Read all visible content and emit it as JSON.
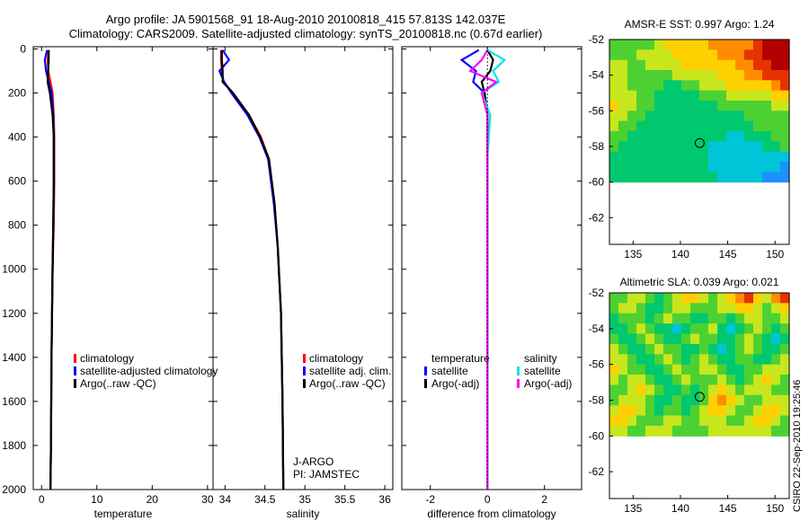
{
  "header": {
    "line1": "Argo profile: JA 5901568_91 18-Aug-2010 20100818_415 57.813S 142.037E",
    "line2": "Climatology: CARS2009. Satellite-adjusted climatology: synTS_20100818.nc (0.67d earlier)"
  },
  "credit": "CSIRO 22-Sep-2010 19:25:46",
  "colors": {
    "climatology": "#ff0000",
    "satellite": "#0000ff",
    "argo": "#000000",
    "satellite_sal": "#00e5ee",
    "argo_sal": "#ff00ff"
  },
  "chart_data": [
    {
      "type": "line",
      "name": "temperature-profile",
      "xlabel": "temperature",
      "xlim": [
        -1.5,
        31
      ],
      "ylim": [
        2000,
        -10
      ],
      "xticks": [
        0,
        10,
        20,
        30
      ],
      "yticks": [
        0,
        200,
        400,
        600,
        800,
        1000,
        1200,
        1400,
        1600,
        1800,
        2000
      ],
      "legend": {
        "position": "middle-right",
        "entries": [
          "climatology",
          "satellite-adjusted climatology",
          "Argo(..raw -QC)"
        ]
      },
      "series": [
        {
          "name": "climatology",
          "color": "#ff0000",
          "x": [
            1.3,
            1.1,
            1.2,
            1.6,
            2.0,
            2.2,
            2.3,
            2.3,
            2.2,
            2.0,
            1.8,
            1.7,
            1.6
          ],
          "y": [
            5,
            50,
            100,
            150,
            200,
            300,
            400,
            600,
            800,
            1000,
            1400,
            1800,
            2000
          ]
        },
        {
          "name": "satellite-adjusted climatology",
          "color": "#0000ff",
          "x": [
            1.0,
            0.6,
            0.8,
            1.3,
            1.8,
            2.1,
            2.2,
            2.2,
            2.1,
            2.0,
            1.8,
            1.7,
            1.6
          ],
          "y": [
            5,
            50,
            100,
            150,
            200,
            300,
            400,
            600,
            800,
            1000,
            1400,
            1800,
            2000
          ]
        },
        {
          "name": "Argo(..raw -QC)",
          "color": "#000000",
          "x": [
            1.3,
            1.3,
            1.2,
            1.1,
            1.5,
            2.0,
            2.2,
            2.2,
            2.1,
            2.0,
            1.8,
            1.7,
            1.6
          ],
          "y": [
            5,
            50,
            100,
            150,
            200,
            300,
            400,
            600,
            800,
            1000,
            1400,
            1800,
            2000
          ]
        }
      ]
    },
    {
      "type": "line",
      "name": "salinity-profile",
      "xlabel": "salinity",
      "xlim": [
        33.85,
        36.1
      ],
      "ylim": [
        2000,
        -10
      ],
      "xticks": [
        34,
        34.5,
        35,
        35.5,
        36
      ],
      "legend": {
        "position": "middle-right",
        "entries": [
          "climatology",
          "satellite adj. clim.",
          "Argo(..raw -QC)"
        ]
      },
      "annotations": [
        "J-ARGO",
        "PI: JAMSTEC"
      ],
      "series": [
        {
          "name": "climatology",
          "color": "#ff0000",
          "x": [
            33.95,
            33.95,
            33.96,
            33.98,
            34.1,
            34.3,
            34.45,
            34.55,
            34.62,
            34.66,
            34.7,
            34.72,
            34.73
          ],
          "y": [
            5,
            50,
            100,
            150,
            200,
            300,
            400,
            500,
            700,
            900,
            1200,
            1600,
            2000
          ]
        },
        {
          "name": "satellite adj. clim.",
          "color": "#0000ff",
          "x": [
            33.97,
            34.05,
            33.93,
            33.99,
            34.08,
            34.28,
            34.43,
            34.54,
            34.61,
            34.66,
            34.7,
            34.72,
            34.73
          ],
          "y": [
            5,
            50,
            100,
            150,
            200,
            300,
            400,
            500,
            700,
            900,
            1200,
            1600,
            2000
          ]
        },
        {
          "name": "Argo(..raw -QC)",
          "color": "#000000",
          "x": [
            33.96,
            33.96,
            33.97,
            33.97,
            34.1,
            34.3,
            34.44,
            34.55,
            34.62,
            34.66,
            34.7,
            34.72,
            34.73
          ],
          "y": [
            5,
            50,
            100,
            150,
            200,
            300,
            400,
            500,
            700,
            900,
            1200,
            1600,
            2000
          ]
        }
      ]
    },
    {
      "type": "line",
      "name": "difference-profile",
      "xlabel": "difference from climatology",
      "xlim": [
        -3,
        3.3
      ],
      "ylim": [
        2000,
        -10
      ],
      "xticks": [
        -2,
        0,
        2
      ],
      "legend": {
        "position": "middle",
        "groups": [
          {
            "title": "temperature",
            "entries": [
              "satellite",
              "Argo(-adj)"
            ]
          },
          {
            "title": "salinity",
            "entries": [
              "satellite",
              "Argo(-adj)"
            ]
          }
        ]
      },
      "series": [
        {
          "name": "temperature satellite",
          "color": "#0000ff",
          "x": [
            -0.3,
            -0.9,
            -0.4,
            -0.5,
            -0.1,
            0.0,
            0.0,
            0.0,
            0.0
          ],
          "y": [
            5,
            50,
            100,
            150,
            200,
            300,
            500,
            1000,
            2000
          ]
        },
        {
          "name": "temperature Argo(-adj)",
          "color": "#000000",
          "x": [
            0.0,
            0.2,
            0.1,
            -0.2,
            -0.1,
            0.0,
            0.0,
            0.0,
            0.0
          ],
          "y": [
            5,
            50,
            100,
            150,
            200,
            300,
            500,
            1000,
            2000
          ]
        },
        {
          "name": "salinity satellite",
          "color": "#00e5ee",
          "x": [
            0.0,
            0.6,
            0.2,
            0.4,
            -0.2,
            0.1,
            0.0,
            0.0,
            0.0
          ],
          "y": [
            5,
            50,
            100,
            150,
            200,
            300,
            500,
            1000,
            2000
          ]
        },
        {
          "name": "salinity Argo(-adj)",
          "color": "#ff00ff",
          "x": [
            0.0,
            -0.2,
            -0.6,
            0.3,
            -0.2,
            0.0,
            0.0,
            0.0,
            0.0
          ],
          "y": [
            5,
            50,
            100,
            150,
            200,
            300,
            500,
            1000,
            2000
          ]
        }
      ]
    },
    {
      "type": "heatmap",
      "name": "amsr-sst-map",
      "title": "AMSR-E SST: 0.997 Argo: 1.24",
      "xlim": [
        132.5,
        151.5
      ],
      "ylim": [
        -63.5,
        -52
      ],
      "xticks": [
        135,
        140,
        145,
        150
      ],
      "yticks": [
        -52,
        -54,
        -56,
        -58,
        -60,
        -62
      ],
      "data_extent": {
        "lon": [
          132.5,
          151.5
        ],
        "lat": [
          -60,
          -52
        ]
      },
      "marker": {
        "lon": 142.037,
        "lat": -57.813
      },
      "colors": [
        "#1e90ff",
        "#00c4d8",
        "#00c86e",
        "#4dd132",
        "#c8e61e",
        "#ffd000",
        "#ff8c00",
        "#e63200",
        "#b00000"
      ],
      "values": [
        [
          3,
          3,
          3,
          3,
          3,
          4,
          5,
          5,
          5,
          5,
          5,
          6,
          6,
          6,
          6,
          6,
          7,
          8,
          8,
          8
        ],
        [
          3,
          3,
          3,
          4,
          4,
          4,
          4,
          5,
          5,
          5,
          5,
          5,
          6,
          6,
          6,
          7,
          7,
          8,
          8,
          8
        ],
        [
          4,
          4,
          3,
          3,
          4,
          4,
          4,
          4,
          5,
          5,
          5,
          5,
          5,
          5,
          6,
          6,
          7,
          7,
          8,
          8
        ],
        [
          4,
          4,
          3,
          3,
          3,
          3,
          3,
          4,
          4,
          4,
          4,
          4,
          5,
          5,
          5,
          6,
          6,
          7,
          7,
          7
        ],
        [
          4,
          4,
          3,
          3,
          3,
          3,
          2,
          2,
          3,
          3,
          4,
          4,
          4,
          5,
          5,
          5,
          5,
          5,
          6,
          7
        ],
        [
          4,
          4,
          4,
          3,
          3,
          2,
          2,
          2,
          2,
          2,
          3,
          3,
          3,
          4,
          4,
          4,
          4,
          4,
          5,
          5
        ],
        [
          5,
          4,
          4,
          3,
          3,
          2,
          2,
          2,
          2,
          2,
          2,
          2,
          3,
          3,
          3,
          3,
          3,
          3,
          4,
          4
        ],
        [
          4,
          4,
          3,
          3,
          2,
          2,
          2,
          2,
          2,
          2,
          2,
          2,
          2,
          2,
          2,
          3,
          3,
          3,
          3,
          3
        ],
        [
          4,
          3,
          3,
          2,
          2,
          2,
          2,
          2,
          2,
          2,
          2,
          2,
          2,
          2,
          2,
          2,
          3,
          3,
          3,
          3
        ],
        [
          3,
          3,
          2,
          2,
          2,
          2,
          2,
          2,
          2,
          2,
          2,
          2,
          2,
          1,
          1,
          2,
          2,
          2,
          3,
          3
        ],
        [
          3,
          2,
          2,
          2,
          2,
          2,
          2,
          2,
          2,
          2,
          2,
          1,
          1,
          1,
          1,
          1,
          1,
          2,
          2,
          3
        ],
        [
          2,
          2,
          2,
          2,
          2,
          2,
          2,
          2,
          2,
          2,
          2,
          1,
          1,
          1,
          1,
          1,
          1,
          1,
          1,
          1
        ],
        [
          2,
          2,
          2,
          2,
          2,
          2,
          2,
          2,
          2,
          2,
          2,
          1,
          1,
          1,
          1,
          1,
          1,
          1,
          1,
          0
        ],
        [
          2,
          2,
          2,
          2,
          2,
          2,
          2,
          2,
          2,
          2,
          2,
          2,
          1,
          1,
          1,
          1,
          1,
          0,
          0,
          0
        ]
      ]
    },
    {
      "type": "heatmap",
      "name": "altimetric-sla-map",
      "title": "Altimetric SLA: 0.039 Argo: 0.021",
      "xlim": [
        132.5,
        151.5
      ],
      "ylim": [
        -63.5,
        -52
      ],
      "xticks": [
        135,
        140,
        145,
        150
      ],
      "yticks": [
        -52,
        -54,
        -56,
        -58,
        -60,
        -62
      ],
      "data_extent": {
        "lon": [
          132.5,
          151.5
        ],
        "lat": [
          -60,
          -52
        ]
      },
      "marker": {
        "lon": 142.037,
        "lat": -57.813
      },
      "colors": [
        "#1e90ff",
        "#00c4d8",
        "#00c86e",
        "#4dd132",
        "#c8e61e",
        "#ffd000",
        "#ff8c00",
        "#e63200",
        "#b00000"
      ],
      "values": [
        [
          3,
          3,
          4,
          4,
          3,
          2,
          3,
          4,
          5,
          5,
          4,
          3,
          4,
          5,
          6,
          7,
          5,
          4,
          6,
          7
        ],
        [
          3,
          4,
          4,
          3,
          2,
          2,
          3,
          4,
          4,
          3,
          3,
          3,
          4,
          4,
          5,
          5,
          4,
          3,
          4,
          5
        ],
        [
          2,
          3,
          3,
          3,
          2,
          3,
          4,
          3,
          3,
          2,
          2,
          3,
          3,
          2,
          3,
          4,
          4,
          3,
          3,
          4
        ],
        [
          2,
          2,
          3,
          4,
          3,
          2,
          2,
          1,
          2,
          3,
          3,
          4,
          2,
          1,
          2,
          3,
          4,
          3,
          2,
          3
        ],
        [
          3,
          2,
          2,
          3,
          4,
          3,
          2,
          2,
          3,
          4,
          3,
          3,
          2,
          2,
          3,
          4,
          3,
          2,
          1,
          2
        ],
        [
          4,
          3,
          2,
          2,
          3,
          4,
          3,
          3,
          2,
          2,
          3,
          2,
          1,
          2,
          3,
          4,
          3,
          2,
          2,
          3
        ],
        [
          4,
          4,
          3,
          2,
          2,
          3,
          4,
          3,
          2,
          3,
          4,
          3,
          2,
          2,
          3,
          3,
          2,
          2,
          3,
          4
        ],
        [
          5,
          4,
          3,
          3,
          2,
          2,
          3,
          4,
          3,
          3,
          4,
          4,
          3,
          2,
          2,
          3,
          3,
          4,
          4,
          4
        ],
        [
          4,
          3,
          4,
          4,
          3,
          2,
          2,
          3,
          4,
          3,
          3,
          3,
          4,
          3,
          2,
          3,
          4,
          5,
          4,
          3
        ],
        [
          3,
          3,
          4,
          5,
          4,
          3,
          2,
          2,
          3,
          2,
          3,
          4,
          5,
          4,
          3,
          4,
          4,
          4,
          3,
          3
        ],
        [
          3,
          4,
          4,
          4,
          3,
          2,
          2,
          3,
          2,
          2,
          3,
          5,
          6,
          5,
          4,
          3,
          3,
          4,
          4,
          4
        ],
        [
          4,
          5,
          5,
          4,
          3,
          2,
          3,
          3,
          2,
          3,
          4,
          5,
          5,
          4,
          3,
          3,
          4,
          5,
          5,
          4
        ],
        [
          5,
          5,
          4,
          3,
          3,
          3,
          4,
          4,
          3,
          3,
          4,
          4,
          4,
          3,
          3,
          4,
          5,
          5,
          4,
          3
        ],
        [
          4,
          4,
          3,
          3,
          4,
          4,
          4,
          3,
          3,
          3,
          3,
          4,
          4,
          4,
          4,
          4,
          4,
          4,
          3,
          3
        ]
      ]
    }
  ]
}
